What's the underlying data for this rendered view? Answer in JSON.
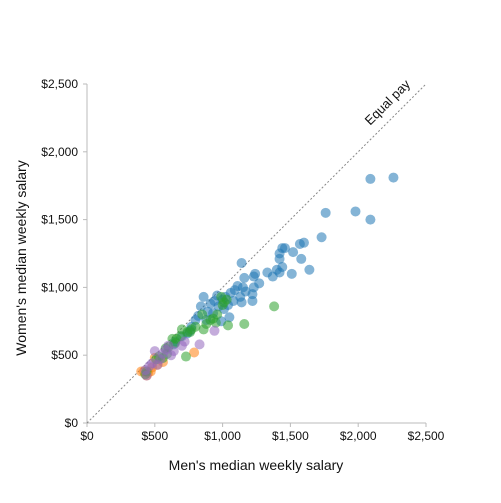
{
  "chart_data": {
    "type": "scatter",
    "xlabel": "Men's median weekly salary",
    "ylabel": "Women's median weekly salary",
    "xlim": [
      0,
      2500
    ],
    "ylim": [
      0,
      2500
    ],
    "x_ticks": [
      "$0",
      "$500",
      "$1,000",
      "$1,500",
      "$2,000",
      "$2,500"
    ],
    "y_ticks": [
      "$0",
      "$500",
      "$1,000",
      "$1,500",
      "$2,000",
      "$2,500"
    ],
    "grid": false,
    "reference_line": {
      "label": "Equal pay",
      "from": [
        0,
        0
      ],
      "to": [
        2500,
        2500
      ]
    },
    "series": [
      {
        "color": "#1f77b4",
        "points": [
          [
            2260,
            1810
          ],
          [
            2090,
            1800
          ],
          [
            2090,
            1500
          ],
          [
            1980,
            1560
          ],
          [
            1760,
            1550
          ],
          [
            1730,
            1370
          ],
          [
            1640,
            1130
          ],
          [
            1600,
            1330
          ],
          [
            1580,
            1210
          ],
          [
            1570,
            1320
          ],
          [
            1520,
            1260
          ],
          [
            1510,
            1100
          ],
          [
            1460,
            1290
          ],
          [
            1440,
            1290
          ],
          [
            1440,
            1150
          ],
          [
            1420,
            1250
          ],
          [
            1420,
            1210
          ],
          [
            1420,
            1110
          ],
          [
            1400,
            1130
          ],
          [
            1370,
            1080
          ],
          [
            1330,
            1110
          ],
          [
            1270,
            1030
          ],
          [
            1240,
            1100
          ],
          [
            1230,
            1080
          ],
          [
            1230,
            1000
          ],
          [
            1220,
            950
          ],
          [
            1220,
            900
          ],
          [
            1170,
            970
          ],
          [
            1160,
            1070
          ],
          [
            1150,
            1000
          ],
          [
            1140,
            1180
          ],
          [
            1140,
            890
          ],
          [
            1130,
            930
          ],
          [
            1110,
            1010
          ],
          [
            1090,
            980
          ],
          [
            1080,
            900
          ],
          [
            1060,
            960
          ],
          [
            1050,
            780
          ],
          [
            1040,
            870
          ],
          [
            1020,
            930
          ],
          [
            1010,
            840
          ],
          [
            1000,
            910
          ],
          [
            990,
            750
          ],
          [
            970,
            860
          ],
          [
            960,
            940
          ],
          [
            940,
            900
          ],
          [
            930,
            810
          ],
          [
            910,
            880
          ],
          [
            890,
            820
          ],
          [
            880,
            760
          ],
          [
            860,
            930
          ],
          [
            840,
            860
          ],
          [
            820,
            790
          ],
          [
            800,
            760
          ],
          [
            770,
            710
          ],
          [
            760,
            680
          ],
          [
            740,
            660
          ],
          [
            700,
            640
          ],
          [
            650,
            600
          ],
          [
            640,
            580
          ]
        ]
      },
      {
        "color": "#ff7f0e",
        "points": [
          [
            790,
            520
          ],
          [
            560,
            450
          ],
          [
            520,
            430
          ],
          [
            500,
            480
          ],
          [
            480,
            410
          ],
          [
            470,
            380
          ],
          [
            450,
            370
          ],
          [
            440,
            350
          ],
          [
            420,
            380
          ],
          [
            400,
            380
          ]
        ]
      },
      {
        "color": "#2ca02c",
        "points": [
          [
            1380,
            860
          ],
          [
            1160,
            730
          ],
          [
            1040,
            720
          ],
          [
            1030,
            910
          ],
          [
            1010,
            890
          ],
          [
            1000,
            870
          ],
          [
            990,
            930
          ],
          [
            960,
            800
          ],
          [
            950,
            740
          ],
          [
            930,
            770
          ],
          [
            910,
            760
          ],
          [
            880,
            730
          ],
          [
            860,
            690
          ],
          [
            850,
            800
          ],
          [
            800,
            710
          ],
          [
            770,
            690
          ],
          [
            760,
            670
          ],
          [
            740,
            670
          ],
          [
            700,
            690
          ],
          [
            690,
            640
          ],
          [
            660,
            620
          ],
          [
            650,
            590
          ],
          [
            630,
            620
          ],
          [
            600,
            560
          ],
          [
            590,
            510
          ],
          [
            580,
            550
          ],
          [
            560,
            480
          ],
          [
            530,
            490
          ],
          [
            510,
            470
          ],
          [
            440,
            380
          ],
          [
            430,
            360
          ],
          [
            730,
            490
          ]
        ]
      },
      {
        "color": "#9467bd",
        "points": [
          [
            940,
            680
          ],
          [
            830,
            580
          ],
          [
            720,
            600
          ],
          [
            700,
            570
          ],
          [
            640,
            530
          ],
          [
            620,
            500
          ],
          [
            600,
            570
          ],
          [
            580,
            540
          ],
          [
            560,
            510
          ],
          [
            540,
            470
          ],
          [
            520,
            430
          ],
          [
            500,
            530
          ],
          [
            480,
            440
          ],
          [
            460,
            420
          ],
          [
            440,
            350
          ],
          [
            430,
            390
          ]
        ]
      }
    ]
  }
}
